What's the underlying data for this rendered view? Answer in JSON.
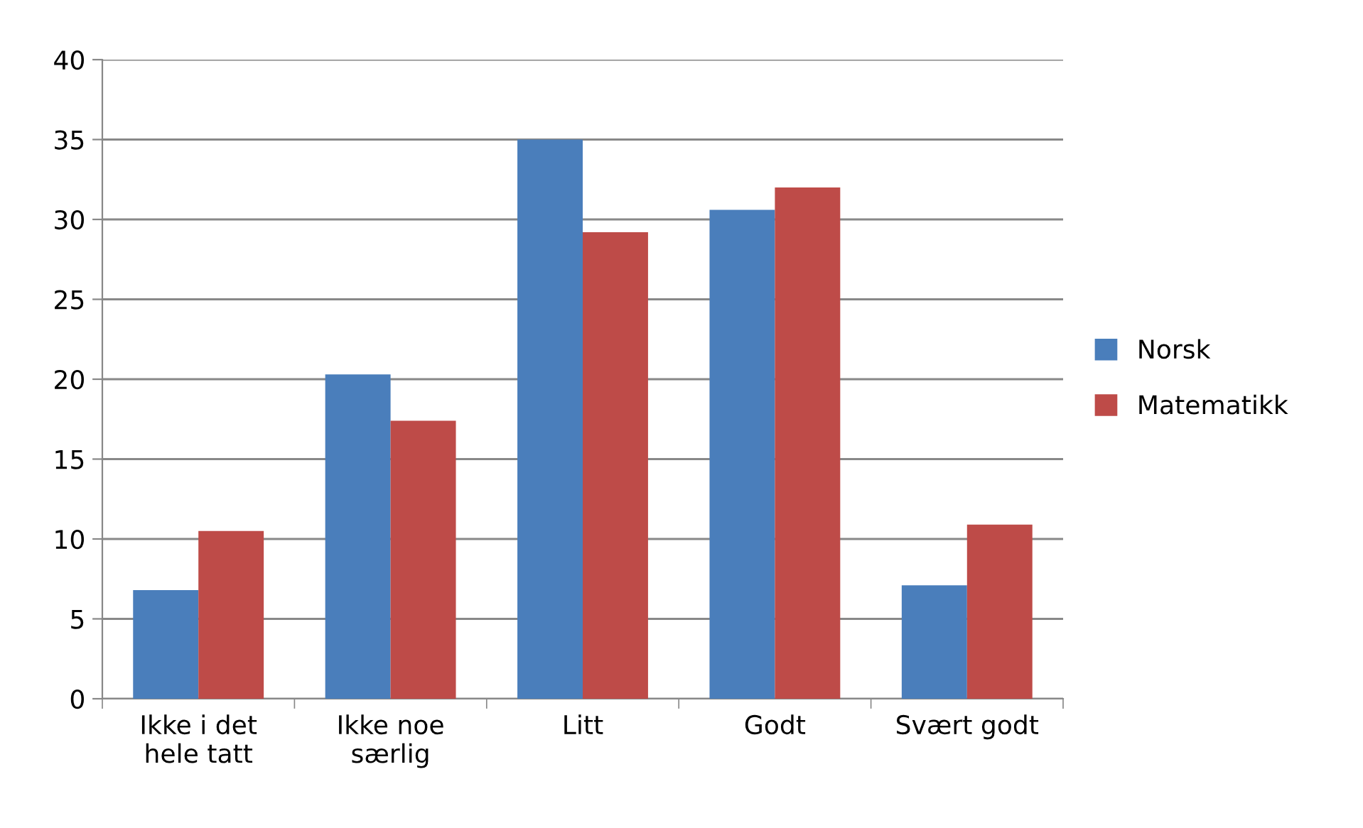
{
  "chart_data": {
    "type": "bar",
    "categories": [
      "Ikke i det\nhele tatt",
      "Ikke noe\nsærlig",
      "Litt",
      "Godt",
      "Svært godt"
    ],
    "series": [
      {
        "name": "Norsk",
        "color": "#4a7ebb",
        "values": [
          6.8,
          20.3,
          35.0,
          30.6,
          7.1
        ]
      },
      {
        "name": "Matematikk",
        "color": "#be4b48",
        "values": [
          10.5,
          17.4,
          29.2,
          32.0,
          10.9
        ]
      }
    ],
    "ylim": [
      0,
      40
    ],
    "yticks": [
      0,
      5,
      10,
      15,
      20,
      25,
      30,
      35,
      40
    ],
    "grid": "y",
    "legend": "right"
  }
}
